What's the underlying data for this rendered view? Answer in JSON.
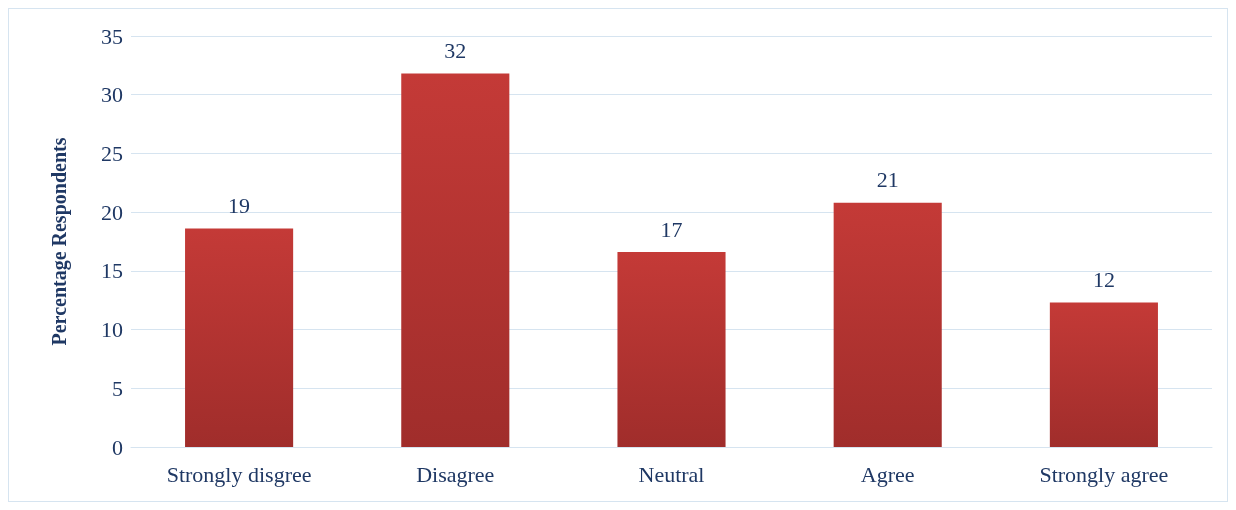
{
  "chart_data": {
    "type": "bar",
    "ylabel": "Percentage Respondents",
    "categories": [
      "Strongly disgree",
      "Disagree",
      "Neutral",
      "Agree",
      "Strongly agree"
    ],
    "values": [
      18.6,
      31.8,
      16.6,
      20.8,
      12.3
    ],
    "value_labels": [
      "19",
      "32",
      "17",
      "21",
      "12"
    ],
    "color": "#c43a37",
    "ylim": [
      0,
      35
    ],
    "yticks": [
      0,
      5,
      10,
      15,
      20,
      25,
      30,
      35
    ],
    "grid": "y"
  }
}
